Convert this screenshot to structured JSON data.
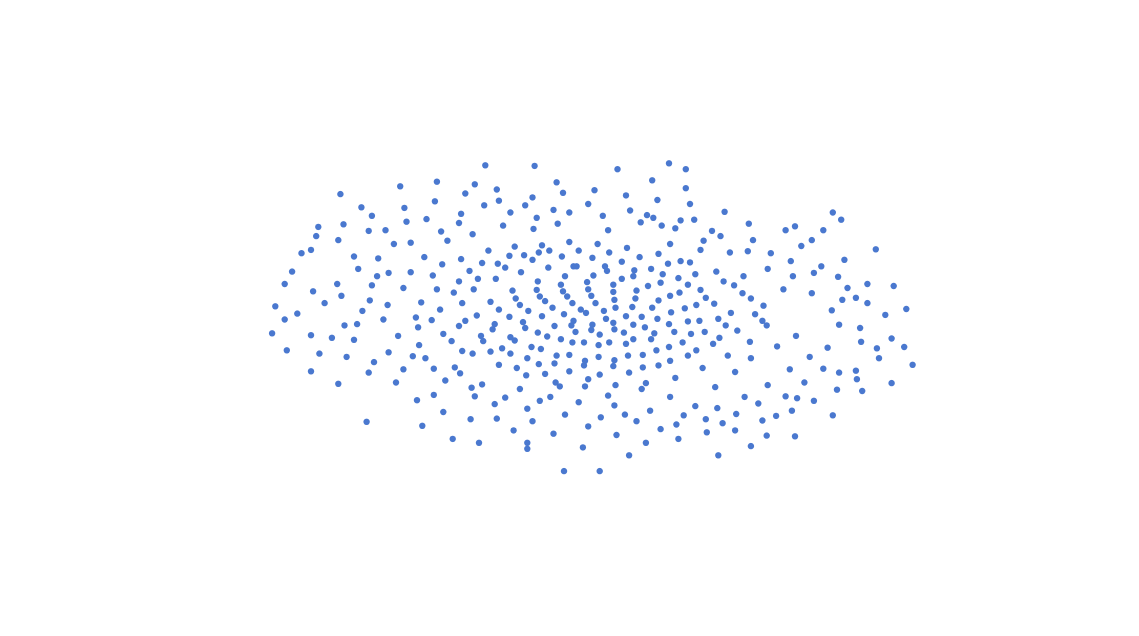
{
  "chart_data": {
    "type": "scatter",
    "title": "",
    "xlabel": "",
    "ylabel": "",
    "axes_visible": false,
    "grid": false,
    "point_color": "#4a78cf",
    "xlim": [
      -4,
      4
    ],
    "ylim": [
      -4,
      4
    ],
    "points": [
      [
        -2.86,
        -0.03
      ],
      [
        -2.74,
        0.06
      ],
      [
        -2.59,
        0.4
      ],
      [
        -2.79,
        0.7
      ],
      [
        -2.61,
        1.03
      ],
      [
        -2.54,
        1.38
      ],
      [
        -2.36,
        0.51
      ],
      [
        -2.12,
        0.1
      ],
      [
        -2.03,
        0.49
      ],
      [
        -2.2,
        -0.34
      ],
      [
        -2.41,
        -0.31
      ],
      [
        -2.01,
        -0.68
      ],
      [
        -1.64,
        -0.59
      ],
      [
        -1.44,
        -0.78
      ],
      [
        -1.19,
        -0.85
      ],
      [
        -1.08,
        -1.07
      ],
      [
        -1.44,
        -1.18
      ],
      [
        -2.08,
        -1.59
      ],
      [
        -1.9,
        1.33
      ],
      [
        -1.66,
        1.14
      ],
      [
        -1.51,
        1.5
      ],
      [
        -1.2,
        1.44
      ],
      [
        -0.82,
        1.78
      ],
      [
        -0.57,
        1.71
      ],
      [
        -0.3,
        1.64
      ],
      [
        0.03,
        1.73
      ],
      [
        0.59,
        1.56
      ],
      [
        0.65,
        1.52
      ],
      [
        0.91,
        1.48
      ],
      [
        1.29,
        1.24
      ],
      [
        1.55,
        1.01
      ],
      [
        2.06,
        1.09
      ],
      [
        2.69,
        0.22
      ],
      [
        2.62,
        -0.16
      ],
      [
        2.42,
        -0.11
      ],
      [
        2.78,
        -0.47
      ],
      [
        3.12,
        -0.72
      ],
      [
        2.59,
        -0.94
      ],
      [
        2.42,
        -0.84
      ],
      [
        2.02,
        -1.23
      ],
      [
        1.82,
        -1.5
      ],
      [
        1.73,
        -1.8
      ],
      [
        1.31,
        -1.61
      ],
      [
        0.72,
        -1.7
      ],
      [
        0.38,
        -1.48
      ],
      [
        0.03,
        -1.66
      ],
      [
        -0.5,
        -1.58
      ],
      [
        -0.68,
        -1.72
      ],
      [
        -0.55,
        -1.39
      ],
      [
        -0.86,
        -1.32
      ],
      [
        -0.98,
        -1.02
      ],
      [
        0.53,
        1.45
      ],
      [
        0.86,
        1.36
      ],
      [
        2.27,
        1.33
      ],
      [
        1.1,
        1.03
      ],
      [
        0.91,
        0.86
      ],
      [
        1.51,
        0.63
      ],
      [
        1.89,
        0.43
      ],
      [
        2.16,
        0.37
      ],
      [
        2.35,
        0.11
      ],
      [
        2.01,
        -0.28
      ],
      [
        1.69,
        -0.05
      ],
      [
        1.83,
        -0.44
      ],
      [
        1.58,
        -0.62
      ],
      [
        1.43,
        -0.83
      ],
      [
        1.24,
        -1.06
      ],
      [
        1.05,
        -1.35
      ],
      [
        0.81,
        -1.21
      ],
      [
        0.54,
        -1.09
      ],
      [
        0.22,
        -1.19
      ],
      [
        0.03,
        -0.94
      ],
      [
        -0.24,
        -1.05
      ],
      [
        -0.38,
        -0.86
      ],
      [
        -0.65,
        -0.77
      ],
      [
        -0.9,
        -0.52
      ],
      [
        -1.17,
        -0.51
      ],
      [
        -1.35,
        -0.25
      ],
      [
        -1.61,
        0.0
      ],
      [
        -1.88,
        0.19
      ],
      [
        -1.73,
        0.45
      ],
      [
        -1.45,
        0.64
      ],
      [
        -1.18,
        0.89
      ],
      [
        -0.92,
        1.02
      ],
      [
        -0.67,
        1.08
      ],
      [
        -0.41,
        1.1
      ],
      [
        -0.15,
        1.15
      ],
      [
        0.12,
        1.12
      ],
      [
        0.4,
        1.06
      ],
      [
        0.7,
        0.97
      ],
      [
        1.0,
        0.84
      ],
      [
        1.25,
        0.7
      ],
      [
        1.42,
        0.49
      ],
      [
        1.58,
        0.29
      ],
      [
        1.62,
        0.05
      ],
      [
        1.45,
        -0.2
      ],
      [
        1.22,
        -0.4
      ],
      [
        0.98,
        -0.58
      ],
      [
        0.7,
        -0.73
      ],
      [
        0.42,
        -0.84
      ],
      [
        0.14,
        -0.87
      ],
      [
        -0.15,
        -0.82
      ],
      [
        -0.44,
        -0.71
      ],
      [
        -0.71,
        -0.55
      ],
      [
        -0.97,
        -0.36
      ],
      [
        -1.2,
        -0.13
      ],
      [
        -1.38,
        0.12
      ],
      [
        -1.25,
        0.38
      ],
      [
        -1.02,
        0.59
      ],
      [
        -0.76,
        0.76
      ],
      [
        -0.5,
        0.88
      ],
      [
        -0.22,
        0.93
      ],
      [
        0.07,
        0.91
      ],
      [
        0.35,
        0.85
      ],
      [
        0.63,
        0.74
      ],
      [
        0.89,
        0.6
      ],
      [
        1.1,
        0.42
      ],
      [
        1.23,
        0.21
      ],
      [
        1.27,
        -0.02
      ],
      [
        1.14,
        -0.22
      ],
      [
        0.93,
        -0.38
      ],
      [
        0.68,
        -0.5
      ],
      [
        0.41,
        -0.58
      ],
      [
        0.13,
        -0.6
      ],
      [
        -0.15,
        -0.57
      ],
      [
        -0.42,
        -0.48
      ],
      [
        -0.67,
        -0.35
      ],
      [
        -0.88,
        -0.18
      ],
      [
        -1.03,
        0.03
      ],
      [
        -0.9,
        0.24
      ],
      [
        -0.69,
        0.41
      ],
      [
        -0.45,
        0.55
      ],
      [
        -0.19,
        0.63
      ],
      [
        0.08,
        0.64
      ],
      [
        0.35,
        0.59
      ],
      [
        0.6,
        0.48
      ],
      [
        0.81,
        0.33
      ],
      [
        0.95,
        0.14
      ],
      [
        0.98,
        -0.06
      ],
      [
        0.85,
        -0.22
      ],
      [
        0.63,
        -0.33
      ],
      [
        0.39,
        -0.4
      ],
      [
        0.13,
        -0.42
      ],
      [
        -0.12,
        -0.38
      ],
      [
        -0.36,
        -0.29
      ],
      [
        -0.57,
        -0.16
      ],
      [
        -0.72,
        0.01
      ],
      [
        -0.62,
        0.19
      ],
      [
        -0.43,
        0.32
      ],
      [
        -0.21,
        0.4
      ],
      [
        0.03,
        0.43
      ],
      [
        0.27,
        0.39
      ],
      [
        0.48,
        0.29
      ],
      [
        0.64,
        0.15
      ],
      [
        0.69,
        -0.02
      ],
      [
        0.57,
        -0.15
      ],
      [
        0.37,
        -0.23
      ],
      [
        0.14,
        -0.26
      ],
      [
        -0.09,
        -0.22
      ],
      [
        -0.29,
        -0.13
      ],
      [
        -0.41,
        0.02
      ],
      [
        -0.31,
        0.15
      ],
      [
        -0.12,
        0.22
      ],
      [
        0.1,
        0.22
      ],
      [
        0.29,
        0.15
      ],
      [
        0.39,
        0.02
      ],
      [
        0.27,
        -0.08
      ],
      [
        0.07,
        -0.11
      ],
      [
        -0.11,
        -0.05
      ],
      [
        0.01,
        0.07
      ],
      [
        -2.48,
        0.22
      ],
      [
        -2.29,
        -0.12
      ],
      [
        -2.16,
        0.74
      ],
      [
        -1.97,
        0.9
      ],
      [
        -1.78,
        -0.28
      ],
      [
        -1.58,
        -0.42
      ],
      [
        -1.53,
        0.92
      ],
      [
        -1.31,
        1.17
      ],
      [
        -1.07,
        1.27
      ],
      [
        -0.78,
        1.4
      ],
      [
        -0.49,
        1.35
      ],
      [
        -0.26,
        1.43
      ],
      [
        0.22,
        1.33
      ],
      [
        0.81,
        1.12
      ],
      [
        1.13,
        1.17
      ],
      [
        1.38,
        0.99
      ],
      [
        1.74,
        0.74
      ],
      [
        1.98,
        0.63
      ],
      [
        2.18,
        0.68
      ],
      [
        2.5,
        0.45
      ],
      [
        2.14,
        -0.6
      ],
      [
        1.95,
        -0.79
      ],
      [
        1.74,
        -1.03
      ],
      [
        1.52,
        -1.21
      ],
      [
        1.26,
        -1.38
      ],
      [
        0.94,
        -1.49
      ],
      [
        0.62,
        -1.42
      ],
      [
        0.28,
        -1.34
      ],
      [
        -0.06,
        -1.29
      ],
      [
        -0.33,
        -1.21
      ],
      [
        -0.62,
        -1.09
      ],
      [
        -1.24,
        -0.76
      ],
      [
        -1.59,
        -0.15
      ],
      [
        -1.87,
        -0.53
      ],
      [
        -2.05,
        0.26
      ],
      [
        -1.87,
        0.68
      ],
      [
        -1.66,
        0.69
      ],
      [
        -1.36,
        0.81
      ],
      [
        -1.1,
        0.71
      ],
      [
        -0.83,
        0.82
      ],
      [
        -0.58,
        0.95
      ],
      [
        -0.34,
        1.02
      ],
      [
        -0.06,
        1.02
      ],
      [
        0.23,
        0.99
      ],
      [
        0.52,
        0.92
      ],
      [
        0.79,
        0.82
      ],
      [
        1.05,
        0.66
      ],
      [
        1.32,
        0.55
      ],
      [
        1.5,
        0.37
      ],
      [
        1.7,
        0.18
      ],
      [
        1.73,
        -0.12
      ],
      [
        1.57,
        -0.37
      ],
      [
        1.36,
        -0.58
      ],
      [
        1.12,
        -0.77
      ],
      [
        0.86,
        -0.92
      ],
      [
        0.58,
        -1.0
      ],
      [
        0.29,
        -1.03
      ],
      [
        0.0,
        -1.05
      ],
      [
        -0.28,
        -0.99
      ],
      [
        -0.56,
        -0.88
      ],
      [
        -0.82,
        -0.72
      ],
      [
        -1.07,
        -0.55
      ],
      [
        -1.27,
        -0.36
      ],
      [
        -1.46,
        -0.04
      ],
      [
        -1.56,
        0.23
      ],
      [
        -1.41,
        0.43
      ],
      [
        -1.2,
        0.55
      ],
      [
        -0.98,
        0.83
      ],
      [
        -0.72,
        0.94
      ],
      [
        -0.44,
        0.99
      ],
      [
        -0.11,
        0.78
      ],
      [
        0.19,
        0.78
      ],
      [
        0.47,
        0.72
      ],
      [
        0.74,
        0.66
      ],
      [
        0.98,
        0.5
      ],
      [
        1.15,
        0.3
      ],
      [
        1.39,
        0.07
      ],
      [
        1.34,
        -0.12
      ],
      [
        1.28,
        -0.31
      ],
      [
        1.06,
        -0.5
      ],
      [
        0.81,
        -0.66
      ],
      [
        0.55,
        -0.76
      ],
      [
        0.27,
        -0.74
      ],
      [
        -0.01,
        -0.73
      ],
      [
        -0.29,
        -0.7
      ],
      [
        -0.55,
        -0.62
      ],
      [
        -0.79,
        -0.47
      ],
      [
        -0.99,
        -0.28
      ],
      [
        -1.14,
        -0.05
      ],
      [
        -1.17,
        0.22
      ],
      [
        -1.06,
        0.43
      ],
      [
        -0.85,
        0.59
      ],
      [
        -0.61,
        0.69
      ],
      [
        -0.35,
        0.76
      ],
      [
        -0.08,
        0.78
      ],
      [
        0.21,
        0.71
      ],
      [
        0.46,
        0.63
      ],
      [
        0.72,
        0.53
      ],
      [
        0.9,
        0.38
      ],
      [
        1.06,
        0.19
      ],
      [
        1.09,
        -0.05
      ],
      [
        1.01,
        -0.25
      ],
      [
        0.8,
        -0.45
      ],
      [
        0.55,
        -0.57
      ],
      [
        0.28,
        -0.65
      ],
      [
        0.0,
        -0.66
      ],
      [
        -0.27,
        -0.58
      ],
      [
        -0.51,
        -0.45
      ],
      [
        -0.71,
        -0.3
      ],
      [
        -0.86,
        -0.1
      ],
      [
        -0.82,
        0.12
      ],
      [
        -0.66,
        0.29
      ],
      [
        -0.46,
        0.42
      ],
      [
        -0.23,
        0.5
      ],
      [
        0.02,
        0.54
      ],
      [
        0.27,
        0.5
      ],
      [
        0.49,
        0.41
      ],
      [
        0.7,
        0.26
      ],
      [
        0.82,
        0.08
      ],
      [
        0.8,
        -0.1
      ],
      [
        0.66,
        -0.24
      ],
      [
        0.46,
        -0.33
      ],
      [
        0.23,
        -0.38
      ],
      [
        -0.01,
        -0.38
      ],
      [
        -0.23,
        -0.33
      ],
      [
        -0.45,
        -0.23
      ],
      [
        -0.59,
        -0.07
      ],
      [
        -0.54,
        0.1
      ],
      [
        -0.38,
        0.25
      ],
      [
        -0.17,
        0.32
      ],
      [
        0.06,
        0.33
      ],
      [
        0.28,
        0.27
      ],
      [
        0.45,
        0.16
      ],
      [
        0.54,
        0.01
      ],
      [
        0.46,
        -0.11
      ],
      [
        0.28,
        -0.18
      ],
      [
        0.06,
        -0.19
      ],
      [
        -0.13,
        -0.12
      ],
      [
        -0.2,
        0.05
      ],
      [
        -0.04,
        0.12
      ],
      [
        0.18,
        0.1
      ],
      [
        0.2,
        -0.02
      ],
      [
        -2.35,
        1.18
      ],
      [
        -2.06,
        1.32
      ],
      [
        -1.82,
        1.12
      ],
      [
        -1.7,
        1.46
      ],
      [
        -1.37,
        1.31
      ],
      [
        -1.18,
        1.58
      ],
      [
        -0.96,
        1.71
      ],
      [
        -0.71,
        1.6
      ],
      [
        -0.46,
        1.52
      ],
      [
        -0.15,
        1.6
      ],
      [
        0.17,
        1.55
      ],
      [
        0.43,
        1.63
      ],
      [
        0.73,
        1.4
      ],
      [
        1.04,
        1.49
      ],
      [
        1.21,
        1.32
      ],
      [
        1.6,
        1.18
      ],
      [
        1.77,
        0.98
      ],
      [
        1.96,
        0.86
      ],
      [
        2.25,
        0.78
      ],
      [
        2.41,
        0.62
      ],
      [
        2.58,
        0.3
      ],
      [
        2.45,
        0.27
      ],
      [
        2.63,
        -0.37
      ],
      [
        2.31,
        -0.46
      ],
      [
        2.27,
        -0.78
      ],
      [
        2.09,
        -0.99
      ],
      [
        1.91,
        -1.2
      ],
      [
        1.65,
        -1.31
      ],
      [
        1.44,
        -1.47
      ],
      [
        1.15,
        -1.55
      ],
      [
        0.87,
        -1.63
      ],
      [
        0.49,
        -1.58
      ],
      [
        0.15,
        -1.52
      ],
      [
        -0.19,
        -1.48
      ],
      [
        -0.43,
        -1.27
      ],
      [
        -0.76,
        -1.22
      ],
      [
        -1.05,
        -1.2
      ],
      [
        -1.33,
        -0.96
      ],
      [
        -1.52,
        -0.62
      ],
      [
        -1.73,
        -0.79
      ],
      [
        -1.92,
        -0.03
      ],
      [
        -2.17,
        -0.1
      ],
      [
        -2.32,
        0.33
      ],
      [
        -2.2,
        0.93
      ],
      [
        -1.98,
        0.63
      ],
      [
        -2.27,
        -0.6
      ],
      [
        -2.06,
        -0.84
      ],
      [
        -1.8,
        -0.99
      ],
      [
        -1.6,
        -1.26
      ],
      [
        -1.35,
        -1.44
      ],
      [
        -1.09,
        -1.55
      ],
      [
        -0.84,
        -1.54
      ],
      [
        -0.55,
        -1.91
      ],
      [
        -0.3,
        -1.77
      ],
      [
        -0.02,
        -1.98
      ],
      [
        0.3,
        -1.79
      ],
      [
        0.58,
        -1.91
      ],
      [
        0.89,
        -1.85
      ],
      [
        1.16,
        -1.75
      ],
      [
        1.43,
        -1.72
      ],
      [
        1.69,
        -1.57
      ],
      [
        1.97,
        -1.42
      ],
      [
        2.18,
        -1.27
      ],
      [
        2.4,
        -1.1
      ],
      [
        2.58,
        -0.81
      ],
      [
        2.8,
        -0.62
      ],
      [
        2.92,
        -0.32
      ],
      [
        2.86,
        0.04
      ],
      [
        2.69,
        0.51
      ],
      [
        2.47,
        0.88
      ],
      [
        2.16,
        1.18
      ],
      [
        1.91,
        1.33
      ],
      [
        1.56,
        1.43
      ],
      [
        1.33,
        1.61
      ],
      [
        1.0,
        1.73
      ],
      [
        0.69,
        1.79
      ],
      [
        0.39,
        1.86
      ],
      [
        0.09,
        1.94
      ],
      [
        -0.21,
        1.9
      ],
      [
        -0.5,
        1.83
      ],
      [
        -0.84,
        1.95
      ],
      [
        -1.14,
        1.89
      ],
      [
        -1.43,
        1.77
      ],
      [
        -1.72,
        1.67
      ],
      [
        -2.03,
        1.55
      ],
      [
        -2.3,
        1.42
      ],
      [
        -2.56,
        1.24
      ],
      [
        -2.7,
        0.98
      ],
      [
        -2.86,
        0.51
      ],
      [
        -2.95,
        0.17
      ],
      [
        -2.98,
        -0.24
      ],
      [
        -2.84,
        -0.5
      ],
      [
        -2.61,
        -0.82
      ],
      [
        -2.35,
        -1.01
      ],
      [
        -2.61,
        -0.27
      ],
      [
        -2.53,
        -0.55
      ],
      [
        -0.48,
        2.31
      ],
      [
        -0.27,
        2.06
      ],
      [
        0.31,
        2.26
      ],
      [
        0.64,
        2.09
      ],
      [
        0.96,
        1.97
      ],
      [
        -1.05,
        2.03
      ],
      [
        -0.95,
        2.32
      ],
      [
        -1.41,
        2.07
      ],
      [
        -1.76,
        2.0
      ],
      [
        -2.13,
        1.68
      ],
      [
        -2.33,
        1.88
      ],
      [
        0.42,
        -2.1
      ],
      [
        0.14,
        -2.34
      ],
      [
        -0.2,
        -2.34
      ],
      [
        -0.55,
        -2.0
      ],
      [
        -1.01,
        -1.91
      ],
      [
        -1.26,
        -1.85
      ],
      [
        -1.55,
        -1.65
      ],
      [
        1.27,
        -2.1
      ],
      [
        1.58,
        -1.96
      ],
      [
        2.0,
        -1.81
      ],
      [
        2.36,
        -1.49
      ],
      [
        2.64,
        -1.12
      ],
      [
        2.92,
        -1.0
      ],
      [
        3.04,
        -0.45
      ],
      [
        3.06,
        0.13
      ],
      [
        2.94,
        0.48
      ],
      [
        2.77,
        1.04
      ],
      [
        0.96,
        2.26
      ],
      [
        0.8,
        2.35
      ],
      [
        2.36,
        1.6
      ],
      [
        2.0,
        1.39
      ],
      [
        2.44,
        1.49
      ]
    ]
  }
}
